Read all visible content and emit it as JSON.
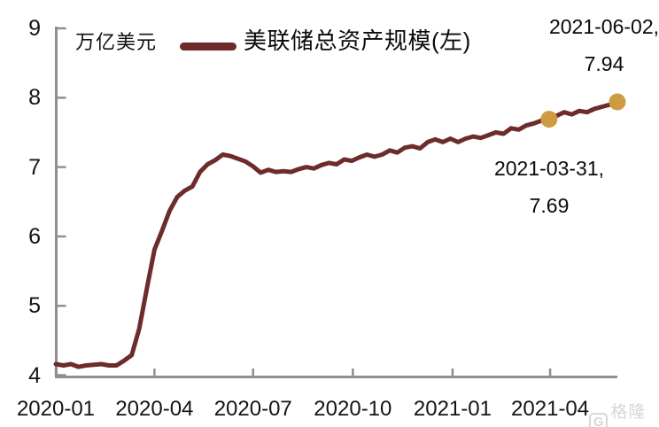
{
  "header": {
    "unit_label": "万亿美元"
  },
  "legend": {
    "label": "美联储总资产规模(左)"
  },
  "annotations": {
    "end": {
      "line1": "2021-06-02,",
      "line2": "7.94"
    },
    "mid": {
      "line1": "2021-03-31,",
      "line2": "7.69"
    }
  },
  "watermark": {
    "logo_letter": "G",
    "text": "格隆汇"
  },
  "colors": {
    "line": "#6E2B2B",
    "marker": "#CE9A42",
    "axis": "#8F8F8F",
    "text": "#000000",
    "watermark": "#D7D7D7"
  },
  "chart_data": {
    "type": "line",
    "unit": "万亿美元",
    "legend_position": "top",
    "grid": false,
    "ylim": [
      4,
      9
    ],
    "y_ticks": [
      9,
      8,
      7,
      6,
      5,
      4
    ],
    "x_ticks": [
      "2020-01",
      "2020-04",
      "2020-07",
      "2020-10",
      "2021-01",
      "2021-04"
    ],
    "series": [
      {
        "name": "美联储总资产规模(左)",
        "dates": [
          "2020-01-01",
          "2020-01-08",
          "2020-01-15",
          "2020-01-22",
          "2020-01-29",
          "2020-02-05",
          "2020-02-12",
          "2020-02-19",
          "2020-02-26",
          "2020-03-04",
          "2020-03-11",
          "2020-03-18",
          "2020-03-25",
          "2020-04-01",
          "2020-04-08",
          "2020-04-15",
          "2020-04-22",
          "2020-04-29",
          "2020-05-06",
          "2020-05-13",
          "2020-05-20",
          "2020-05-27",
          "2020-06-03",
          "2020-06-10",
          "2020-06-17",
          "2020-06-24",
          "2020-07-01",
          "2020-07-08",
          "2020-07-15",
          "2020-07-22",
          "2020-07-29",
          "2020-08-05",
          "2020-08-12",
          "2020-08-19",
          "2020-08-26",
          "2020-09-02",
          "2020-09-09",
          "2020-09-16",
          "2020-09-23",
          "2020-09-30",
          "2020-10-07",
          "2020-10-14",
          "2020-10-21",
          "2020-10-28",
          "2020-11-04",
          "2020-11-11",
          "2020-11-18",
          "2020-11-25",
          "2020-12-02",
          "2020-12-09",
          "2020-12-16",
          "2020-12-23",
          "2020-12-30",
          "2021-01-06",
          "2021-01-13",
          "2021-01-20",
          "2021-01-27",
          "2021-02-03",
          "2021-02-10",
          "2021-02-17",
          "2021-02-24",
          "2021-03-03",
          "2021-03-10",
          "2021-03-17",
          "2021-03-24",
          "2021-03-31",
          "2021-04-07",
          "2021-04-14",
          "2021-04-21",
          "2021-04-28",
          "2021-05-05",
          "2021-05-12",
          "2021-05-19",
          "2021-05-26",
          "2021-06-02"
        ],
        "values": [
          4.16,
          4.14,
          4.16,
          4.12,
          4.14,
          4.15,
          4.16,
          4.14,
          4.14,
          4.21,
          4.29,
          4.67,
          5.25,
          5.81,
          6.08,
          6.37,
          6.57,
          6.66,
          6.72,
          6.93,
          7.04,
          7.1,
          7.18,
          7.16,
          7.12,
          7.08,
          7.01,
          6.92,
          6.96,
          6.93,
          6.94,
          6.93,
          6.97,
          7.0,
          6.98,
          7.03,
          7.06,
          7.04,
          7.11,
          7.09,
          7.14,
          7.18,
          7.15,
          7.18,
          7.24,
          7.21,
          7.28,
          7.3,
          7.27,
          7.36,
          7.4,
          7.36,
          7.41,
          7.36,
          7.41,
          7.44,
          7.42,
          7.46,
          7.5,
          7.48,
          7.56,
          7.54,
          7.6,
          7.63,
          7.67,
          7.69,
          7.74,
          7.79,
          7.76,
          7.81,
          7.79,
          7.84,
          7.87,
          7.9,
          7.94
        ],
        "color": "#6E2B2B"
      }
    ],
    "markers": [
      {
        "date": "2021-03-31",
        "value": 7.69,
        "label": "2021-03-31, 7.69"
      },
      {
        "date": "2021-06-02",
        "value": 7.94,
        "label": "2021-06-02, 7.94"
      }
    ]
  }
}
